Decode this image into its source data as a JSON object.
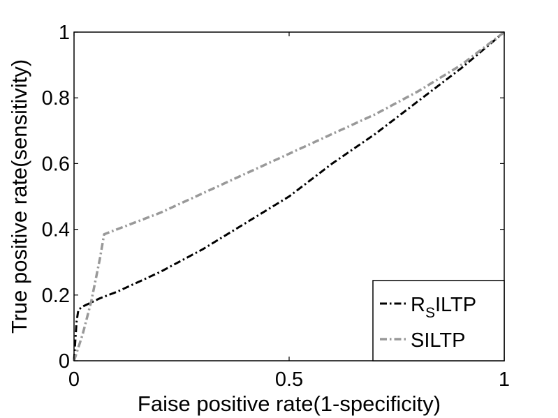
{
  "chart_data": {
    "type": "line",
    "title": "",
    "xlabel": "Faise positive rate(1-specificity)",
    "ylabel": "True positive rate(sensitivity)",
    "xlim": [
      0,
      1
    ],
    "ylim": [
      0,
      1
    ],
    "xticks": [
      0,
      0.5,
      1
    ],
    "xtick_labels": [
      "0",
      "0.5",
      "1"
    ],
    "yticks": [
      0,
      0.2,
      0.4,
      0.6,
      0.8,
      1
    ],
    "ytick_labels": [
      "0",
      "0.2",
      "0.4",
      "0.6",
      "0.8",
      "1"
    ],
    "grid": false,
    "legend_position": "bottom-right",
    "series": [
      {
        "name": "RSILTP",
        "label_main": "R",
        "label_sub": "S",
        "label_rest": "ILTP",
        "color": "#000000",
        "dash": "dash-dot",
        "x": [
          0,
          0.003,
          0.006,
          0.01,
          0.02,
          0.06,
          0.1,
          0.2,
          0.3,
          0.4,
          0.5,
          0.6,
          0.7,
          0.8,
          0.9,
          1.0
        ],
        "y": [
          0,
          0.06,
          0.12,
          0.155,
          0.165,
          0.19,
          0.21,
          0.27,
          0.34,
          0.42,
          0.5,
          0.6,
          0.69,
          0.79,
          0.89,
          1.0
        ]
      },
      {
        "name": "SILTP",
        "color": "#999999",
        "dash": "dash-dot",
        "x": [
          0,
          0.02,
          0.04,
          0.06,
          0.07,
          0.1,
          0.2,
          0.3,
          0.4,
          0.5,
          0.6,
          0.7,
          0.8,
          0.9,
          1.0
        ],
        "y": [
          0,
          0.08,
          0.18,
          0.31,
          0.385,
          0.4,
          0.45,
          0.51,
          0.57,
          0.63,
          0.69,
          0.75,
          0.82,
          0.9,
          1.0
        ]
      }
    ]
  }
}
